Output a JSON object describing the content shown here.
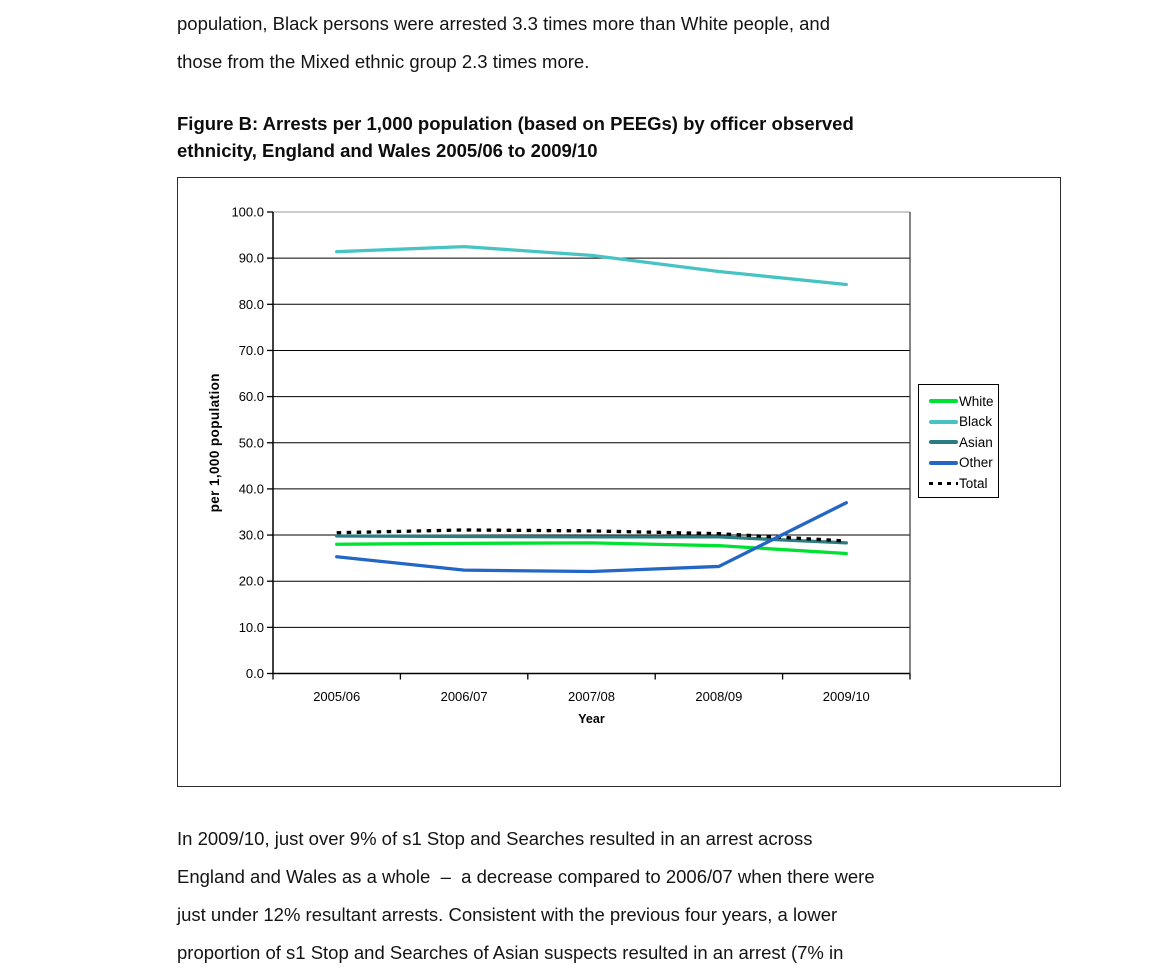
{
  "page": {
    "para_top": {
      "lines": [
        "population, Black persons were arrested 3.3 times more than White people, and",
        "those from the Mixed ethnic group 2.3 times more."
      ]
    },
    "figure_heading": {
      "lines": [
        "Figure B: Arrests per 1,000 population (based on PEEGs) by officer observed",
        "ethnicity, England and Wales 2005/06 to 2009/10"
      ]
    },
    "para_bottom": {
      "lines": [
        "In 2009/10, just over 9% of s1 Stop and Searches resulted in an arrest across",
        "England and Wales as a whole  –  a decrease compared to 2006/07 when there were",
        "just under 12% resultant arrests. Consistent with the previous four years, a lower",
        "proportion of s1 Stop and Searches of Asian suspects resulted in an arrest (7% in"
      ]
    }
  },
  "chart_data": {
    "type": "line",
    "title": "Arrests per 1,000 population (based on PEEGs) by officer observed ethnicity, England and Wales 2005/06 to 2009/10",
    "categories": [
      "2005/06",
      "2006/07",
      "2007/08",
      "2008/09",
      "2009/10"
    ],
    "series": [
      {
        "name": "White",
        "color": "#00e132",
        "dash": null,
        "values": [
          28.0,
          28.2,
          28.3,
          27.7,
          26.0
        ]
      },
      {
        "name": "Black",
        "color": "#48c3c3",
        "dash": null,
        "values": [
          91.4,
          92.5,
          90.6,
          87.1,
          84.3
        ]
      },
      {
        "name": "Asian",
        "color": "#2a7c80",
        "dash": null,
        "values": [
          29.8,
          29.7,
          29.6,
          29.6,
          28.3
        ]
      },
      {
        "name": "Other",
        "color": "#2366c6",
        "dash": null,
        "values": [
          25.3,
          22.4,
          22.1,
          23.2,
          37.0
        ]
      },
      {
        "name": "Total",
        "color": "#000000",
        "dash": "4.5 5.5",
        "values": [
          30.5,
          31.1,
          30.9,
          30.3,
          28.7
        ]
      }
    ],
    "xlabel": "Year",
    "ylabel": "per 1,000 population",
    "ylim": [
      0,
      100
    ],
    "ytick_step": 10,
    "ytick_decimals": 1,
    "grid": true,
    "legend_position": "right"
  }
}
